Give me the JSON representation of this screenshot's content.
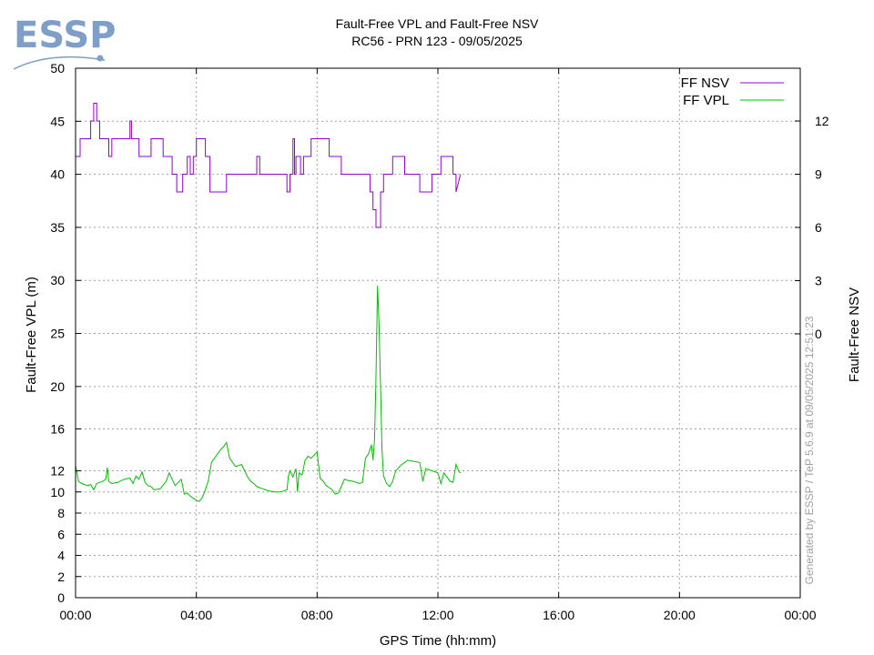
{
  "logo": {
    "text": "ESSP",
    "color": "#7f9ec8"
  },
  "credit": "Generated by ESSP / TeP 5.6.9 at 09/05/2025 12:51:23",
  "chart_data": {
    "type": "line",
    "title": "Fault-Free VPL and Fault-Free NSV",
    "subtitle": "RC56 - PRN 123 - 09/05/2025",
    "xlabel": "GPS Time (hh:mm)",
    "ylabel": "Fault-Free VPL (m)",
    "y2label": "Fault-Free NSV",
    "xlim_hours": [
      0,
      24
    ],
    "x_ticks": [
      "00:00",
      "04:00",
      "08:00",
      "12:00",
      "16:00",
      "20:00",
      "00:00"
    ],
    "y_ticks": [
      0,
      2,
      4,
      6,
      8,
      10,
      12,
      16,
      20,
      25,
      30,
      35,
      40,
      45,
      50
    ],
    "y2_ticks": [
      0,
      3,
      6,
      9,
      12
    ],
    "y_scale": "piecewise: linear 0-12 with 2 m spacing, then 16, 20, 25..50 at equal spacing",
    "grid": true,
    "legend_position": "top-right",
    "series": [
      {
        "name": "FF NSV",
        "axis": "y2",
        "color": "#9400d3",
        "x_hours": [
          0,
          0.15,
          0.15,
          0.5,
          0.5,
          0.6,
          0.6,
          0.7,
          0.7,
          0.8,
          0.8,
          1.1,
          1.1,
          1.2,
          1.2,
          1.8,
          1.8,
          1.85,
          1.85,
          2.1,
          2.1,
          2.5,
          2.5,
          2.9,
          2.9,
          3.2,
          3.2,
          3.35,
          3.35,
          3.55,
          3.55,
          3.7,
          3.7,
          3.8,
          3.8,
          3.9,
          3.9,
          4.0,
          4.0,
          4.3,
          4.3,
          4.45,
          4.45,
          5.0,
          5.0,
          5.5,
          5.5,
          6.0,
          6.0,
          6.1,
          6.1,
          7.0,
          7.0,
          7.1,
          7.1,
          7.2,
          7.2,
          7.25,
          7.25,
          7.3,
          7.3,
          7.45,
          7.45,
          7.55,
          7.55,
          7.8,
          7.8,
          8.4,
          8.4,
          8.8,
          8.8,
          9.3,
          9.3,
          9.75,
          9.75,
          9.85,
          9.85,
          9.95,
          9.95,
          10.1,
          10.1,
          10.2,
          10.2,
          10.5,
          10.5,
          10.9,
          10.9,
          11.4,
          11.4,
          11.8,
          11.8,
          12.1,
          12.1,
          12.5,
          12.5,
          12.6,
          12.6,
          12.75
        ],
        "values": [
          10,
          10,
          11,
          11,
          12,
          12,
          13,
          13,
          12,
          12,
          11,
          11,
          10,
          10,
          11,
          11,
          12,
          12,
          11,
          11,
          10,
          10,
          11,
          11,
          10,
          10,
          9,
          9,
          8,
          8,
          9,
          9,
          10,
          10,
          9,
          9,
          10,
          10,
          11,
          11,
          10,
          10,
          8,
          8,
          9,
          9,
          9,
          9,
          10,
          10,
          9,
          9,
          8,
          8,
          9,
          9,
          11,
          11,
          9,
          9,
          10,
          10,
          9,
          9,
          10,
          10,
          11,
          11,
          10,
          10,
          9,
          9,
          9,
          9,
          8,
          8,
          7,
          7,
          6,
          6,
          8,
          8,
          9,
          9,
          10,
          10,
          9,
          9,
          8,
          8,
          9,
          9,
          10,
          10,
          9,
          9,
          8,
          9
        ]
      },
      {
        "name": "FF VPL",
        "axis": "y",
        "color": "#00c000",
        "x_hours": [
          0,
          0.1,
          0.2,
          0.4,
          0.5,
          0.6,
          0.7,
          0.8,
          0.9,
          1.0,
          1.05,
          1.1,
          1.2,
          1.4,
          1.6,
          1.8,
          1.9,
          2.0,
          2.1,
          2.2,
          2.3,
          2.4,
          2.5,
          2.6,
          2.8,
          3.0,
          3.1,
          3.2,
          3.3,
          3.4,
          3.5,
          3.6,
          3.7,
          3.8,
          3.9,
          4.0,
          4.1,
          4.2,
          4.3,
          4.4,
          4.5,
          4.6,
          4.7,
          4.8,
          4.9,
          5.0,
          5.1,
          5.2,
          5.3,
          5.5,
          5.6,
          5.7,
          5.8,
          5.9,
          6.0,
          6.1,
          6.2,
          6.4,
          6.6,
          6.8,
          7.0,
          7.05,
          7.1,
          7.2,
          7.3,
          7.35,
          7.4,
          7.5,
          7.6,
          7.7,
          7.8,
          7.9,
          8.0,
          8.1,
          8.2,
          8.3,
          8.4,
          8.5,
          8.6,
          8.7,
          8.8,
          8.9,
          9.0,
          9.2,
          9.4,
          9.5,
          9.6,
          9.7,
          9.8,
          9.85,
          9.9,
          9.95,
          10.0,
          10.05,
          10.1,
          10.15,
          10.2,
          10.3,
          10.4,
          10.5,
          10.6,
          10.8,
          11.0,
          11.2,
          11.4,
          11.5,
          11.6,
          11.8,
          12.0,
          12.1,
          12.2,
          12.4,
          12.5,
          12.6,
          12.7,
          12.75
        ],
        "values": [
          12.5,
          11.0,
          10.8,
          10.6,
          10.7,
          10.2,
          10.8,
          10.9,
          11.0,
          11.2,
          12.3,
          11.0,
          10.8,
          10.9,
          11.2,
          11.3,
          10.8,
          11.5,
          11.2,
          11.9,
          10.9,
          10.6,
          10.5,
          10.2,
          10.3,
          11.0,
          11.8,
          11.2,
          10.6,
          10.9,
          11.2,
          9.8,
          9.9,
          9.6,
          9.4,
          9.2,
          9.1,
          9.5,
          10.2,
          11.1,
          12.8,
          13.2,
          13.6,
          14.0,
          14.3,
          14.7,
          13.2,
          12.8,
          12.4,
          12.6,
          12.0,
          11.4,
          11.0,
          10.8,
          10.5,
          10.4,
          10.3,
          10.1,
          10.0,
          10.0,
          10.2,
          11.5,
          12.0,
          11.4,
          12.2,
          10.0,
          11.8,
          11.6,
          13.0,
          13.4,
          13.2,
          13.5,
          13.8,
          11.3,
          11.0,
          10.6,
          10.4,
          10.2,
          9.8,
          9.9,
          10.5,
          11.2,
          11.1,
          11.0,
          10.8,
          10.9,
          13.2,
          13.6,
          14.5,
          13.0,
          15.0,
          21.0,
          29.5,
          26.0,
          20.0,
          14.0,
          11.5,
          10.8,
          10.5,
          11.0,
          12.0,
          12.6,
          13.0,
          12.9,
          12.8,
          11.0,
          12.2,
          12.0,
          11.8,
          10.8,
          11.8,
          11.0,
          10.9,
          12.6,
          11.9,
          11.8
        ]
      }
    ]
  }
}
